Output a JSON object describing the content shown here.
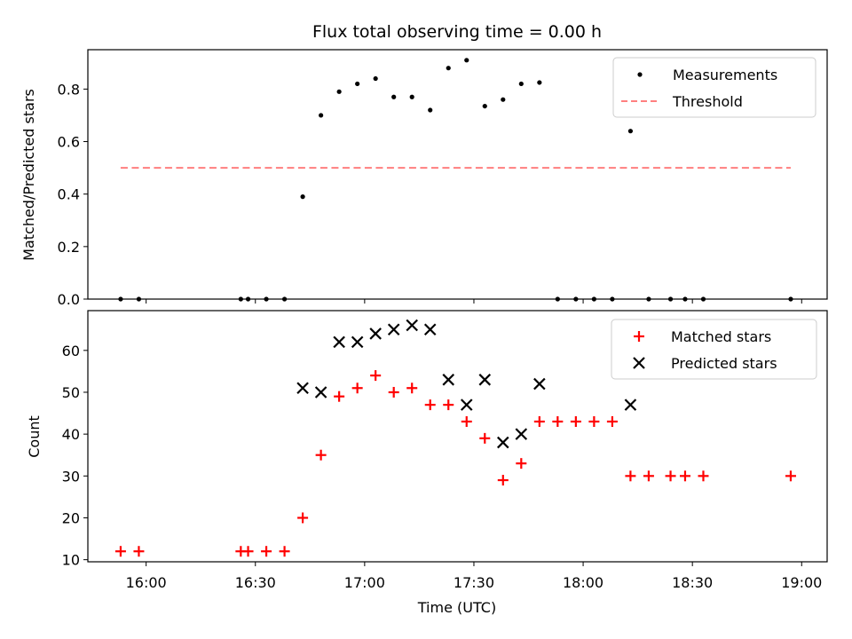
{
  "chart_data": [
    {
      "type": "scatter",
      "title": "Flux total observing time = 0.00 h",
      "xlabel": "",
      "ylabel": "Matched/Predicted stars",
      "ylim": [
        0,
        0.95
      ],
      "yticks": [
        0.0,
        0.2,
        0.4,
        0.6,
        0.8
      ],
      "ytick_labels": [
        "0.0",
        "0.2",
        "0.4",
        "0.6",
        "0.8"
      ],
      "legend_position": "top-right",
      "series": [
        {
          "name": "Measurements",
          "kind": "points",
          "color": "#000000",
          "x": [
            "15:53",
            "15:58",
            "16:26",
            "16:28",
            "16:33",
            "16:38",
            "16:43",
            "16:48",
            "16:53",
            "16:58",
            "17:03",
            "17:08",
            "17:13",
            "17:18",
            "17:23",
            "17:28",
            "17:33",
            "17:38",
            "17:43",
            "17:48",
            "17:53",
            "17:58",
            "18:03",
            "18:08",
            "18:13",
            "18:18",
            "18:24",
            "18:28",
            "18:33",
            "18:57"
          ],
          "values": [
            0,
            0,
            0,
            0,
            0,
            0,
            0.39,
            0.7,
            0.79,
            0.82,
            0.84,
            0.77,
            0.77,
            0.72,
            0.88,
            0.91,
            0.735,
            0.76,
            0.82,
            0.825,
            0,
            0,
            0,
            0,
            0.64,
            0,
            0,
            0,
            0,
            0
          ]
        },
        {
          "name": "Threshold",
          "kind": "dashed-line",
          "color": "#ff7f7f",
          "x": [
            "15:53",
            "18:57"
          ],
          "values": [
            0.5,
            0.5
          ]
        }
      ]
    },
    {
      "type": "scatter",
      "title": "",
      "xlabel": "Time (UTC)",
      "ylabel": "Count",
      "ylim": [
        9.5,
        69.5
      ],
      "xlim": [
        "15:44",
        "19:07"
      ],
      "xticks": [
        "16:00",
        "16:30",
        "17:00",
        "17:30",
        "18:00",
        "18:30",
        "19:00"
      ],
      "yticks": [
        10,
        20,
        30,
        40,
        50,
        60
      ],
      "ytick_labels": [
        "10",
        "20",
        "30",
        "40",
        "50",
        "60"
      ],
      "legend_position": "top-right",
      "series": [
        {
          "name": "Matched stars",
          "marker": "plus",
          "color": "#ff0000",
          "x": [
            "15:53",
            "15:58",
            "16:26",
            "16:28",
            "16:33",
            "16:38",
            "16:43",
            "16:48",
            "16:53",
            "16:58",
            "17:03",
            "17:08",
            "17:13",
            "17:18",
            "17:23",
            "17:28",
            "17:33",
            "17:38",
            "17:43",
            "17:48",
            "17:53",
            "17:58",
            "18:03",
            "18:08",
            "18:13",
            "18:18",
            "18:24",
            "18:28",
            "18:33",
            "18:57"
          ],
          "values": [
            12,
            12,
            12,
            12,
            12,
            12,
            20,
            35,
            49,
            51,
            54,
            50,
            51,
            47,
            47,
            43,
            39,
            29,
            33,
            43,
            43,
            43,
            43,
            43,
            30,
            30,
            30,
            30,
            30,
            30
          ]
        },
        {
          "name": "Predicted stars",
          "marker": "x",
          "color": "#000000",
          "x": [
            "16:43",
            "16:48",
            "16:53",
            "16:58",
            "17:03",
            "17:08",
            "17:13",
            "17:18",
            "17:23",
            "17:28",
            "17:33",
            "17:38",
            "17:43",
            "17:48",
            "18:13"
          ],
          "values": [
            51,
            50,
            62,
            62,
            64,
            65,
            66,
            65,
            53,
            47,
            53,
            38,
            40,
            52,
            47
          ]
        }
      ]
    }
  ]
}
